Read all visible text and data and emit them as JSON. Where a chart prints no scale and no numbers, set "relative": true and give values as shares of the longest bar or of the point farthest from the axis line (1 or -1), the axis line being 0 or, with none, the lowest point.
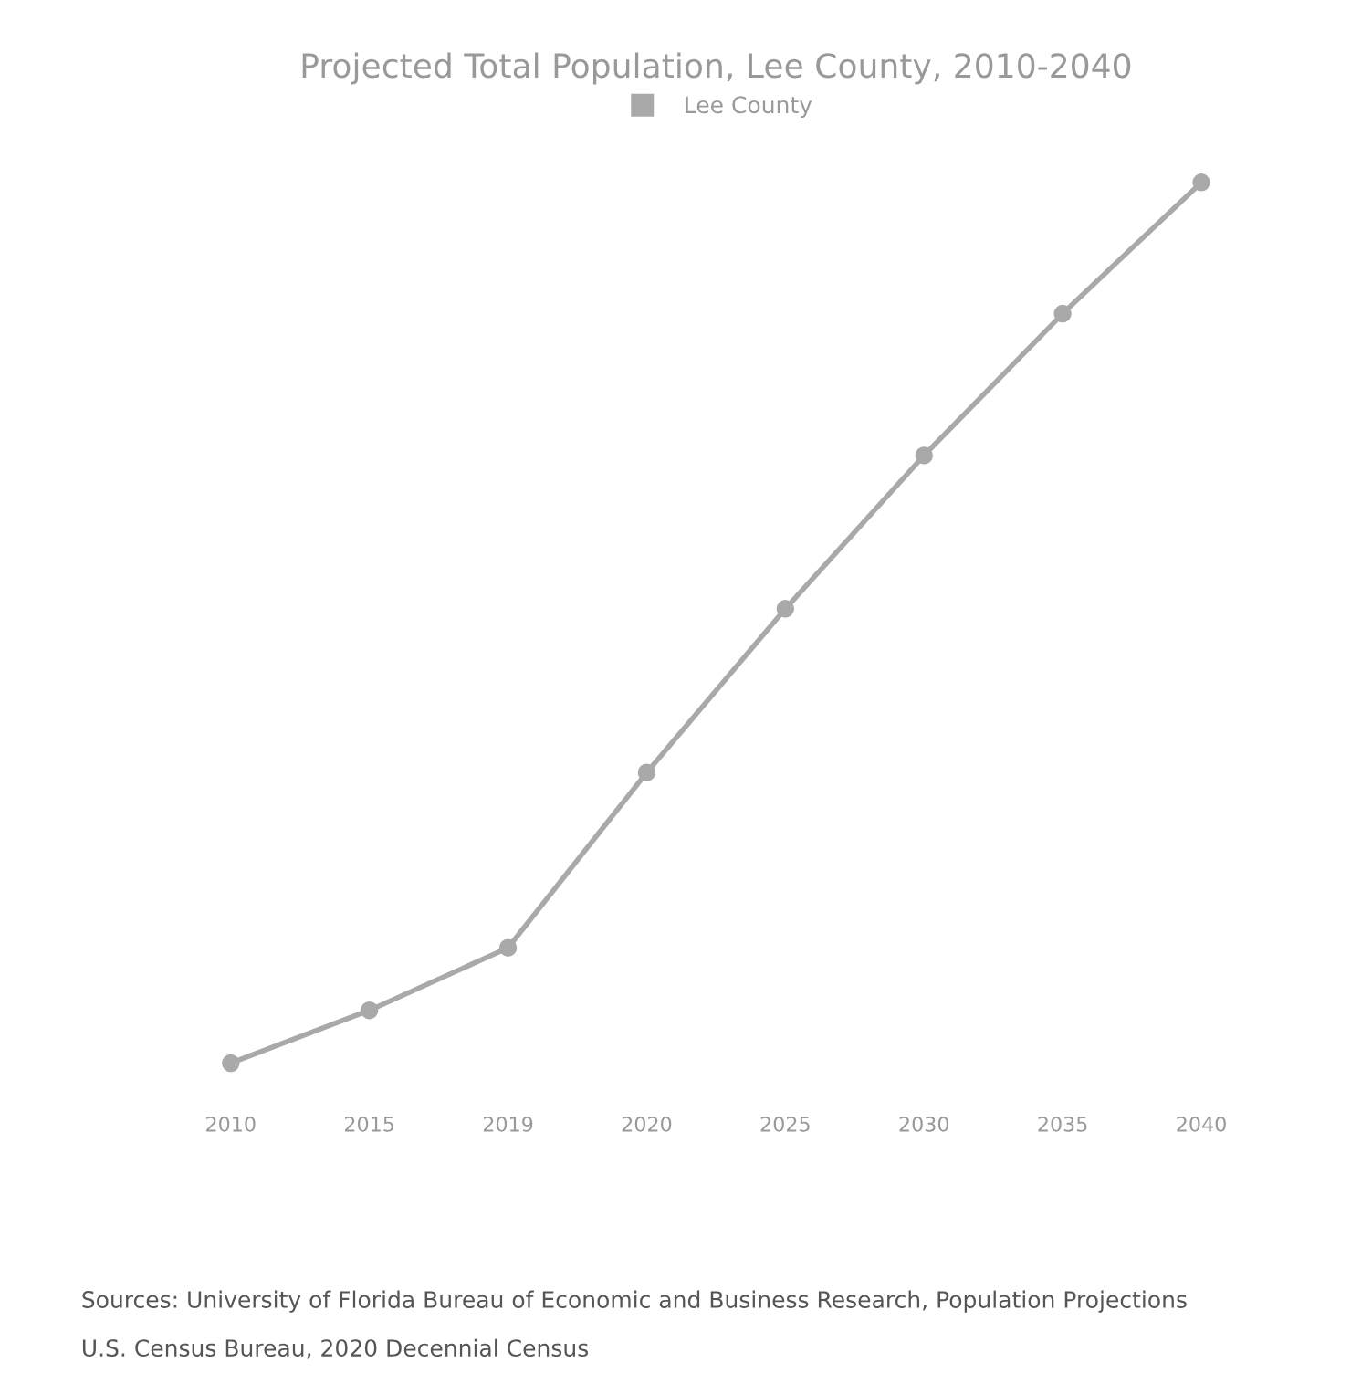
{
  "chart_data": {
    "type": "line",
    "title": "Projected Total Population, Lee County, 2010-2040",
    "categories": [
      "2010",
      "2015",
      "2019",
      "2020",
      "2025",
      "2030",
      "2035",
      "2040"
    ],
    "series": [
      {
        "name": "Lee County",
        "color": "#a9a9a9",
        "values": [
          0,
          0.06,
          0.131,
          0.33,
          0.516,
          0.69,
          0.851,
          1
        ]
      }
    ],
    "relative": true,
    "marker": "circle",
    "line_style": "solid",
    "grid": false,
    "legend": "top",
    "annotations": [
      "Sources: University of Florida Bureau of Economic and Business Research, Population Projections",
      "U.S. Census Bureau, 2020 Decennial Census"
    ]
  }
}
